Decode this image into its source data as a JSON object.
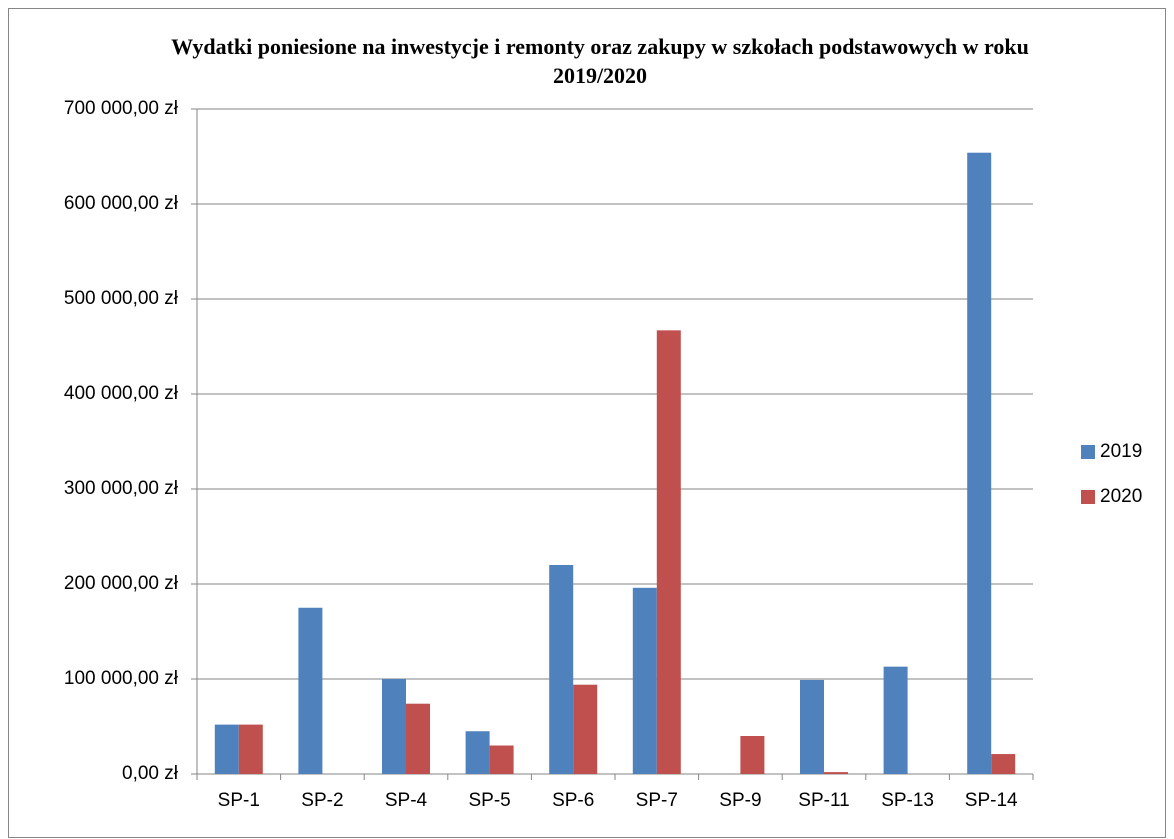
{
  "chart_data": {
    "type": "bar",
    "title": "Wydatki poniesione na inwestycje i remonty oraz zakupy w szkołach podstawowych w roku 2019/2020",
    "categories": [
      "SP-1",
      "SP-2",
      "SP-4",
      "SP-5",
      "SP-6",
      "SP-7",
      "SP-9",
      "SP-11",
      "SP-13",
      "SP-14"
    ],
    "series": [
      {
        "name": "2019",
        "color": "#4f81bd",
        "values": [
          52000,
          175000,
          100000,
          45000,
          220000,
          196000,
          0,
          99000,
          113000,
          654000
        ]
      },
      {
        "name": "2020",
        "color": "#c0504d",
        "values": [
          52000,
          0,
          74000,
          30000,
          94000,
          467000,
          40000,
          2000,
          0,
          21000
        ]
      }
    ],
    "ylim": [
      0,
      700000
    ],
    "yticks": [
      {
        "value": 0,
        "label": "0,00 zł"
      },
      {
        "value": 100000,
        "label": "100 000,00 zł"
      },
      {
        "value": 200000,
        "label": "200 000,00 zł"
      },
      {
        "value": 300000,
        "label": "300 000,00 zł"
      },
      {
        "value": 400000,
        "label": "400 000,00 zł"
      },
      {
        "value": 500000,
        "label": "500 000,00 zł"
      },
      {
        "value": 600000,
        "label": "600 000,00 zł"
      },
      {
        "value": 700000,
        "label": "700 000,00 zł"
      }
    ],
    "grid": true,
    "legend": "right"
  }
}
